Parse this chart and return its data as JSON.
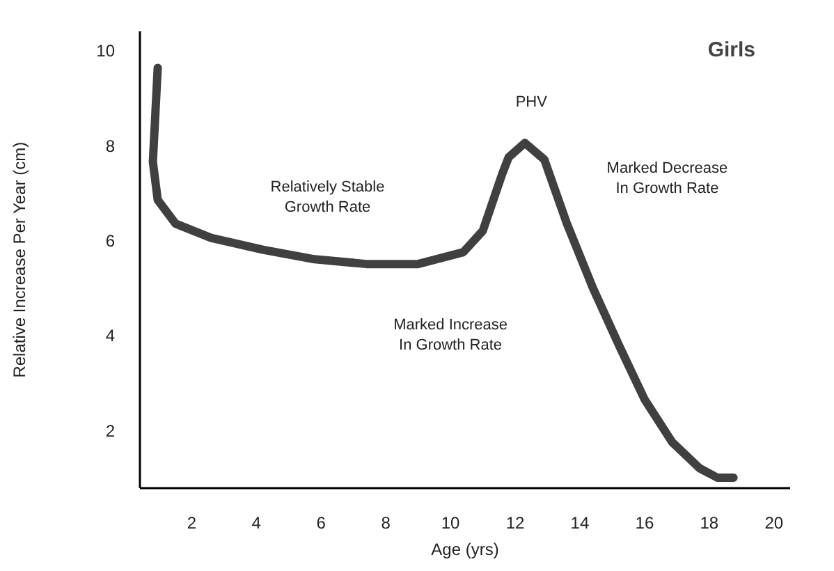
{
  "chart_data": {
    "type": "line",
    "title": "Girls",
    "xlabel": "Age (yrs)",
    "ylabel": "Relative Increase Per Year (cm)",
    "annotations": [
      "Relatively Stable\nGrowth Rate",
      "Marked Increase\nIn Growth Rate",
      "PHV",
      "Marked Decrease\nIn Growth Rate"
    ],
    "xlim": [
      0.4,
      20.5
    ],
    "ylim": [
      0.78,
      10.4
    ],
    "xticks": [
      2,
      4,
      6,
      8,
      10,
      12,
      14,
      16,
      18,
      20
    ],
    "yticks": [
      2,
      4,
      6,
      8,
      10
    ],
    "grid": false,
    "series": [
      {
        "color": "#404040",
        "x": [
          0.95,
          0.8,
          0.95,
          1.5,
          2.6,
          4.2,
          5.8,
          7.4,
          9.0,
          10.4,
          11.0,
          11.6,
          11.8,
          12.3,
          12.9,
          13.6,
          14.4,
          15.2,
          16.0,
          16.85,
          17.7,
          18.25,
          18.75
        ],
        "values": [
          9.63,
          7.65,
          6.85,
          6.35,
          6.05,
          5.8,
          5.6,
          5.5,
          5.5,
          5.75,
          6.2,
          7.4,
          7.75,
          8.05,
          7.7,
          6.35,
          5.0,
          3.8,
          2.65,
          1.75,
          1.2,
          1.0,
          1.0
        ]
      }
    ]
  }
}
